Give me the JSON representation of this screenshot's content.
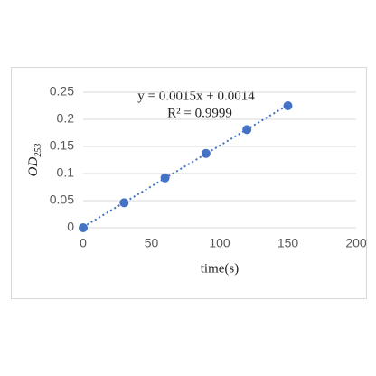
{
  "chart_data": {
    "type": "scatter",
    "x": [
      0,
      30,
      60,
      90,
      120,
      150
    ],
    "values": [
      0,
      0.046,
      0.092,
      0.137,
      0.181,
      0.225
    ],
    "color": "#4472c4",
    "xlabel": "time(s)",
    "ylabel": "OD",
    "ylabel_subscript": "253",
    "xlim": [
      0,
      200
    ],
    "xticks": [
      0,
      50,
      100,
      150,
      200
    ],
    "ylim": [
      0,
      0.25
    ],
    "yticks": [
      0,
      0.05,
      0.1,
      0.15,
      0.2,
      0.25
    ],
    "grid": true,
    "trendline": {
      "slope": 0.0015,
      "intercept": 0.0014,
      "label": "y = 0.0015x + 0.0014",
      "r2_label": "R² = 0.9999"
    }
  }
}
